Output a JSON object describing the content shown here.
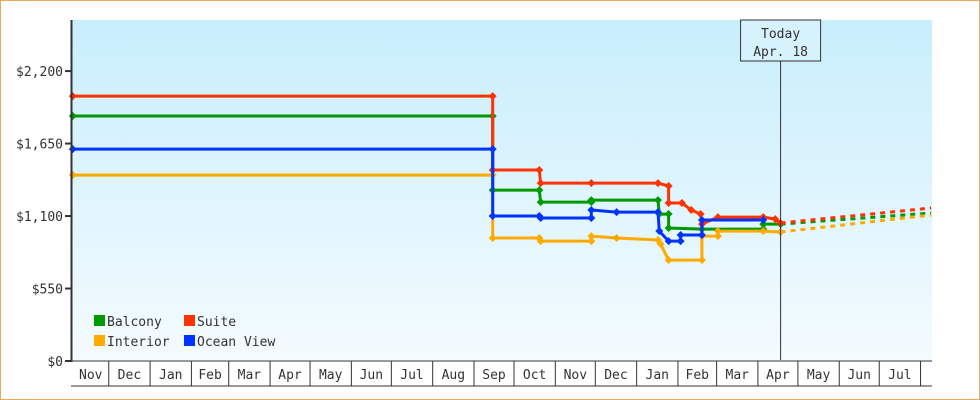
{
  "chart_data": {
    "type": "line",
    "title": "",
    "xlabel": "",
    "ylabel": "",
    "ylim": [
      0,
      2580
    ],
    "xlim": [
      "2010-11-04",
      "2012-08-09"
    ],
    "y_ticks": [
      0,
      550,
      1100,
      1650,
      2200
    ],
    "y_tick_labels": [
      "$0",
      "$550",
      "$1,100",
      "$1,650",
      "$2,200"
    ],
    "x_month_labels": [
      {
        "label": "Nov",
        "start": "2010-11-04",
        "end": "2010-12-01"
      },
      {
        "label": "Dec",
        "start": "2010-12-01",
        "end": "2011-01-01"
      },
      {
        "label": "Jan",
        "start": "2011-01-01",
        "end": "2011-02-01"
      },
      {
        "label": "Feb",
        "start": "2011-02-01",
        "end": "2011-03-01"
      },
      {
        "label": "Mar",
        "start": "2011-03-01",
        "end": "2011-04-01"
      },
      {
        "label": "Apr",
        "start": "2011-04-01",
        "end": "2011-05-01"
      },
      {
        "label": "May",
        "start": "2011-05-01",
        "end": "2011-06-01"
      },
      {
        "label": "Jun",
        "start": "2011-06-01",
        "end": "2011-07-01"
      },
      {
        "label": "Jul",
        "start": "2011-07-01",
        "end": "2011-08-01"
      },
      {
        "label": "Aug",
        "start": "2011-08-01",
        "end": "2011-09-01"
      },
      {
        "label": "Sep",
        "start": "2011-09-01",
        "end": "2011-10-01"
      },
      {
        "label": "Oct",
        "start": "2011-10-01",
        "end": "2011-11-01"
      },
      {
        "label": "Nov",
        "start": "2011-11-01",
        "end": "2011-12-01"
      },
      {
        "label": "Dec",
        "start": "2011-12-01",
        "end": "2012-01-01"
      },
      {
        "label": "Jan",
        "start": "2012-01-01",
        "end": "2012-02-01"
      },
      {
        "label": "Feb",
        "start": "2012-02-01",
        "end": "2012-03-01"
      },
      {
        "label": "Mar",
        "start": "2012-03-01",
        "end": "2012-04-01"
      },
      {
        "label": "Apr",
        "start": "2012-04-01",
        "end": "2012-05-01"
      },
      {
        "label": "May",
        "start": "2012-05-01",
        "end": "2012-06-01"
      },
      {
        "label": "Jun",
        "start": "2012-06-01",
        "end": "2012-07-01"
      },
      {
        "label": "Jul",
        "start": "2012-07-01",
        "end": "2012-08-01"
      },
      {
        "label": "",
        "start": "2012-08-01",
        "end": "2012-08-09"
      }
    ],
    "today": {
      "line1": "Today",
      "line2": "Apr. 18",
      "date": "2012-04-18"
    },
    "legend": {
      "placement": "bottom-left"
    },
    "grid": false,
    "series": [
      {
        "name": "Balcony",
        "color": "#009900",
        "points": [
          [
            "2010-11-04",
            1859
          ],
          [
            "2011-09-15",
            1859
          ],
          [
            "2011-09-15",
            1297
          ],
          [
            "2011-10-20",
            1297
          ],
          [
            "2011-10-21",
            1206
          ],
          [
            "2011-11-28",
            1206
          ],
          [
            "2011-11-28",
            1221
          ],
          [
            "2012-01-17",
            1221
          ],
          [
            "2012-01-18",
            1115
          ],
          [
            "2012-01-25",
            1115
          ],
          [
            "2012-01-25",
            1009
          ],
          [
            "2012-02-19",
            1001
          ],
          [
            "2012-04-05",
            1001
          ],
          [
            "2012-04-05",
            1039
          ],
          [
            "2012-04-18",
            1039
          ]
        ],
        "forecast": [
          [
            "2012-04-18",
            1039
          ],
          [
            "2012-08-09",
            1123
          ]
        ]
      },
      {
        "name": "Suite",
        "color": "#ff3300",
        "points": [
          [
            "2010-11-04",
            2010
          ],
          [
            "2011-09-15",
            2010
          ],
          [
            "2011-09-15",
            1449
          ],
          [
            "2011-10-20",
            1449
          ],
          [
            "2011-10-21",
            1350
          ],
          [
            "2011-11-28",
            1350
          ],
          [
            "2012-01-17",
            1350
          ],
          [
            "2012-01-25",
            1328
          ],
          [
            "2012-01-25",
            1199
          ],
          [
            "2012-02-04",
            1199
          ],
          [
            "2012-02-11",
            1146
          ],
          [
            "2012-02-18",
            1115
          ],
          [
            "2012-02-19",
            1039
          ],
          [
            "2012-03-02",
            1092
          ],
          [
            "2012-04-05",
            1092
          ],
          [
            "2012-04-14",
            1077
          ],
          [
            "2012-04-18",
            1047
          ]
        ],
        "forecast": [
          [
            "2012-04-18",
            1047
          ],
          [
            "2012-08-09",
            1161
          ]
        ]
      },
      {
        "name": "Interior",
        "color": "#ffaa00",
        "points": [
          [
            "2010-11-04",
            1411
          ],
          [
            "2011-09-15",
            1411
          ],
          [
            "2011-09-15",
            933
          ],
          [
            "2011-10-20",
            933
          ],
          [
            "2011-10-21",
            910
          ],
          [
            "2011-11-28",
            910
          ],
          [
            "2011-11-28",
            948
          ],
          [
            "2011-12-17",
            933
          ],
          [
            "2012-01-17",
            918
          ],
          [
            "2012-01-19",
            888
          ],
          [
            "2012-01-25",
            766
          ],
          [
            "2012-02-19",
            766
          ],
          [
            "2012-02-19",
            948
          ],
          [
            "2012-03-02",
            948
          ],
          [
            "2012-03-02",
            986
          ],
          [
            "2012-04-05",
            986
          ],
          [
            "2012-04-18",
            979
          ]
        ],
        "forecast": [
          [
            "2012-04-18",
            979
          ],
          [
            "2012-08-09",
            1108
          ]
        ]
      },
      {
        "name": "Ocean View",
        "color": "#0033ff",
        "points": [
          [
            "2010-11-04",
            1608
          ],
          [
            "2011-09-15",
            1608
          ],
          [
            "2011-09-15",
            1100
          ],
          [
            "2011-10-20",
            1100
          ],
          [
            "2011-10-21",
            1085
          ],
          [
            "2011-11-28",
            1085
          ],
          [
            "2011-11-28",
            1146
          ],
          [
            "2011-12-17",
            1130
          ],
          [
            "2012-01-17",
            1130
          ],
          [
            "2012-01-18",
            986
          ],
          [
            "2012-01-25",
            910
          ],
          [
            "2012-02-03",
            910
          ],
          [
            "2012-02-03",
            956
          ],
          [
            "2012-02-19",
            956
          ],
          [
            "2012-02-19",
            1070
          ],
          [
            "2012-04-05",
            1070
          ]
        ],
        "forecast": []
      }
    ]
  },
  "colors": {
    "border": "#e8a860",
    "plot_top": "#c8eefc",
    "plot_bottom": "#f4fbff",
    "axis": "#333333"
  }
}
